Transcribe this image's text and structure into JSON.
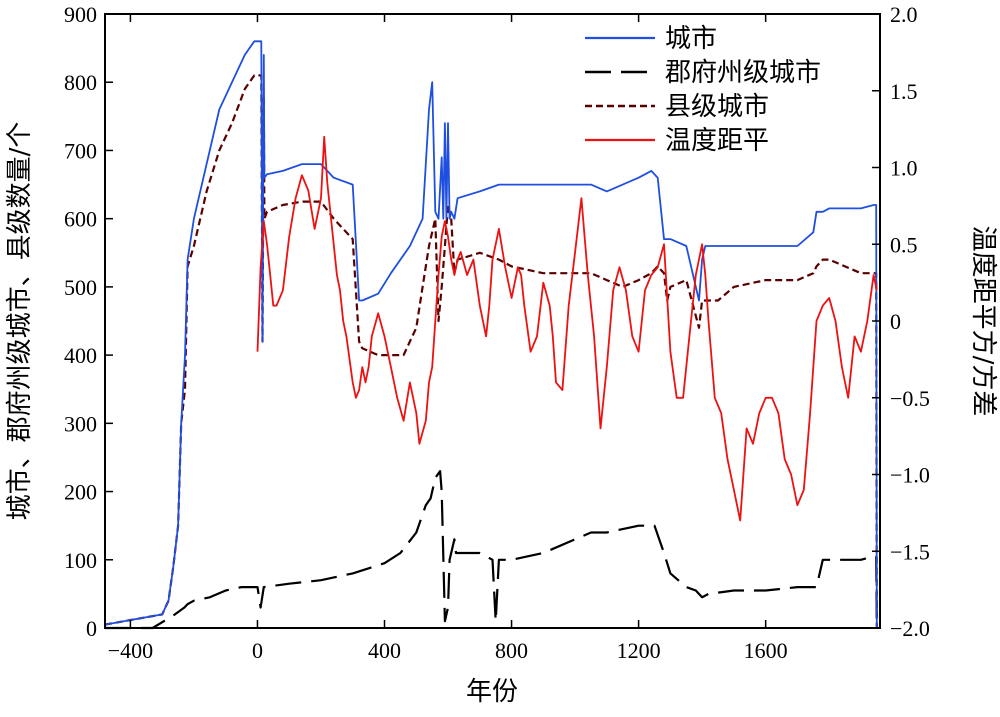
{
  "chart_data": {
    "type": "line",
    "title": "",
    "xlabel": "年份",
    "ylabel_left": "城市、郡府州级城市、县级数量/个",
    "ylabel_right": "温度距平方/方差",
    "xlim": [
      -480,
      1960
    ],
    "ylim_left": [
      0,
      900
    ],
    "ylim_right": [
      -2.0,
      2.0
    ],
    "x_ticks": [
      -400,
      0,
      400,
      800,
      1200,
      1600
    ],
    "x_tick_labels": [
      "−400",
      "0",
      "400",
      "800",
      "1200",
      "1600"
    ],
    "y_left_ticks": [
      0,
      100,
      200,
      300,
      400,
      500,
      600,
      700,
      800,
      900
    ],
    "y_left_tick_labels": [
      "0",
      "100",
      "200",
      "300",
      "400",
      "500",
      "600",
      "700",
      "800",
      "900"
    ],
    "y_right_ticks": [
      -2.0,
      -1.5,
      -1.0,
      -0.5,
      0,
      0.5,
      1.0,
      1.5,
      2.0
    ],
    "y_right_tick_labels": [
      "−2.0",
      "−1.5",
      "−1.0",
      "−0.5",
      "0",
      "0.5",
      "1.0",
      "1.5",
      "2.0"
    ],
    "legend_position": "top-right",
    "grid": false,
    "series": [
      {
        "name": "城市",
        "axis": "left",
        "color": "#1f4fe0",
        "style": "solid",
        "x": [
          -480,
          -300,
          -280,
          -265,
          -250,
          -240,
          -228,
          -220,
          -200,
          -160,
          -120,
          -80,
          -40,
          -10,
          5,
          12,
          16,
          20,
          22,
          30,
          80,
          140,
          200,
          240,
          300,
          320,
          330,
          380,
          420,
          480,
          520,
          540,
          550,
          560,
          570,
          580,
          585,
          590,
          595,
          600,
          605,
          610,
          620,
          630,
          700,
          760,
          800,
          900,
          1000,
          1050,
          1100,
          1150,
          1200,
          1240,
          1260,
          1280,
          1290,
          1300,
          1350,
          1390,
          1400,
          1410,
          1450,
          1500,
          1600,
          1700,
          1750,
          1760,
          1780,
          1800,
          1900,
          1940,
          1948,
          1950
        ],
        "values": [
          5,
          20,
          40,
          90,
          150,
          300,
          400,
          540,
          600,
          680,
          760,
          800,
          840,
          860,
          860,
          860,
          420,
          840,
          660,
          665,
          670,
          680,
          680,
          660,
          650,
          480,
          480,
          490,
          520,
          560,
          600,
          760,
          800,
          610,
          600,
          690,
          600,
          740,
          600,
          740,
          600,
          610,
          600,
          630,
          640,
          650,
          650,
          650,
          650,
          650,
          640,
          650,
          660,
          670,
          660,
          570,
          570,
          570,
          560,
          480,
          540,
          560,
          560,
          560,
          560,
          560,
          580,
          610,
          610,
          615,
          615,
          620,
          620,
          0
        ]
      },
      {
        "name": "郡府州级城市",
        "axis": "left",
        "color": "#000000",
        "style": "dashed",
        "x": [
          -480,
          -330,
          -260,
          -230,
          -220,
          -200,
          -150,
          -100,
          -50,
          0,
          10,
          20,
          100,
          200,
          300,
          400,
          450,
          500,
          530,
          545,
          560,
          575,
          580,
          590,
          600,
          605,
          610,
          615,
          620,
          625,
          630,
          700,
          740,
          750,
          760,
          770,
          800,
          900,
          1000,
          1050,
          1100,
          1200,
          1250,
          1280,
          1300,
          1350,
          1380,
          1400,
          1420,
          1500,
          1600,
          1700,
          1750,
          1760,
          1780,
          1800,
          1900,
          1940,
          1948,
          1950
        ],
        "values": [
          0,
          0,
          20,
          30,
          35,
          40,
          45,
          55,
          60,
          60,
          30,
          60,
          65,
          70,
          80,
          95,
          110,
          140,
          180,
          190,
          220,
          230,
          200,
          10,
          30,
          100,
          110,
          120,
          130,
          110,
          110,
          110,
          100,
          10,
          100,
          100,
          100,
          110,
          130,
          140,
          140,
          150,
          150,
          110,
          80,
          60,
          55,
          45,
          50,
          55,
          55,
          60,
          60,
          60,
          100,
          100,
          100,
          105,
          105,
          0
        ]
      },
      {
        "name": "县级城市",
        "axis": "left",
        "color": "#5a0000",
        "style": "dotted",
        "x": [
          -480,
          -300,
          -280,
          -265,
          -250,
          -240,
          -228,
          -220,
          -200,
          -160,
          -120,
          -80,
          -40,
          -10,
          5,
          12,
          16,
          20,
          22,
          30,
          80,
          140,
          200,
          240,
          300,
          320,
          330,
          380,
          420,
          460,
          480,
          500,
          520,
          540,
          560,
          570,
          580,
          590,
          600,
          610,
          620,
          630,
          700,
          760,
          800,
          900,
          1000,
          1050,
          1100,
          1150,
          1200,
          1240,
          1260,
          1280,
          1290,
          1300,
          1350,
          1390,
          1400,
          1410,
          1450,
          1500,
          1600,
          1700,
          1750,
          1760,
          1780,
          1800,
          1900,
          1940,
          1948,
          1950
        ],
        "values": [
          5,
          20,
          40,
          90,
          150,
          300,
          350,
          530,
          560,
          640,
          700,
          740,
          790,
          810,
          810,
          810,
          420,
          780,
          600,
          610,
          620,
          625,
          625,
          600,
          570,
          420,
          410,
          400,
          400,
          400,
          420,
          440,
          500,
          560,
          600,
          450,
          500,
          560,
          620,
          600,
          520,
          540,
          550,
          540,
          530,
          520,
          520,
          520,
          510,
          500,
          510,
          520,
          530,
          520,
          480,
          500,
          510,
          440,
          480,
          480,
          480,
          500,
          510,
          510,
          520,
          530,
          540,
          540,
          520,
          520,
          520,
          0
        ]
      },
      {
        "name": "温度距平",
        "axis": "right",
        "color": "#ee1111",
        "style": "solid",
        "x": [
          0,
          10,
          20,
          30,
          40,
          50,
          60,
          80,
          100,
          120,
          140,
          160,
          180,
          200,
          210,
          220,
          230,
          240,
          250,
          260,
          270,
          280,
          300,
          310,
          320,
          330,
          340,
          350,
          360,
          380,
          400,
          420,
          440,
          460,
          480,
          500,
          510,
          530,
          540,
          550,
          560,
          570,
          580,
          590,
          600,
          610,
          620,
          630,
          640,
          660,
          680,
          700,
          720,
          730,
          740,
          760,
          780,
          800,
          820,
          830,
          840,
          860,
          880,
          900,
          920,
          930,
          940,
          960,
          980,
          1000,
          1020,
          1040,
          1060,
          1080,
          1100,
          1120,
          1140,
          1160,
          1180,
          1200,
          1220,
          1240,
          1260,
          1280,
          1300,
          1320,
          1340,
          1360,
          1380,
          1400,
          1410,
          1420,
          1440,
          1460,
          1480,
          1500,
          1520,
          1540,
          1560,
          1580,
          1600,
          1620,
          1640,
          1660,
          1680,
          1700,
          1720,
          1740,
          1760,
          1780,
          1800,
          1820,
          1840,
          1860,
          1880,
          1900,
          1920,
          1940,
          1950
        ],
        "values": [
          -0.2,
          0.35,
          0.65,
          0.5,
          0.3,
          0.1,
          0.1,
          0.2,
          0.55,
          0.8,
          0.95,
          0.85,
          0.6,
          0.8,
          1.2,
          0.9,
          0.7,
          0.5,
          0.3,
          0.2,
          0.0,
          -0.1,
          -0.4,
          -0.5,
          -0.45,
          -0.3,
          -0.4,
          -0.3,
          -0.1,
          0.05,
          -0.1,
          -0.3,
          -0.5,
          -0.65,
          -0.4,
          -0.6,
          -0.8,
          -0.65,
          -0.4,
          -0.3,
          0.0,
          0.3,
          0.55,
          0.65,
          0.55,
          0.4,
          0.3,
          0.4,
          0.45,
          0.3,
          0.4,
          0.1,
          -0.1,
          0.1,
          0.4,
          0.6,
          0.35,
          0.15,
          0.35,
          0.3,
          0.1,
          -0.2,
          -0.1,
          0.25,
          0.1,
          -0.1,
          -0.4,
          -0.45,
          0.1,
          0.45,
          0.8,
          0.3,
          -0.1,
          -0.7,
          -0.3,
          0.2,
          0.35,
          0.2,
          -0.1,
          -0.2,
          0.2,
          0.3,
          0.35,
          0.5,
          -0.2,
          -0.5,
          -0.5,
          -0.1,
          0.3,
          0.5,
          0.3,
          0.0,
          -0.5,
          -0.6,
          -0.9,
          -1.1,
          -1.3,
          -0.7,
          -0.8,
          -0.6,
          -0.5,
          -0.5,
          -0.6,
          -0.9,
          -1.0,
          -1.2,
          -1.1,
          -0.6,
          0.0,
          0.1,
          0.15,
          0.0,
          -0.3,
          -0.5,
          -0.1,
          -0.2,
          0.0,
          0.3,
          0.2
        ]
      }
    ]
  }
}
